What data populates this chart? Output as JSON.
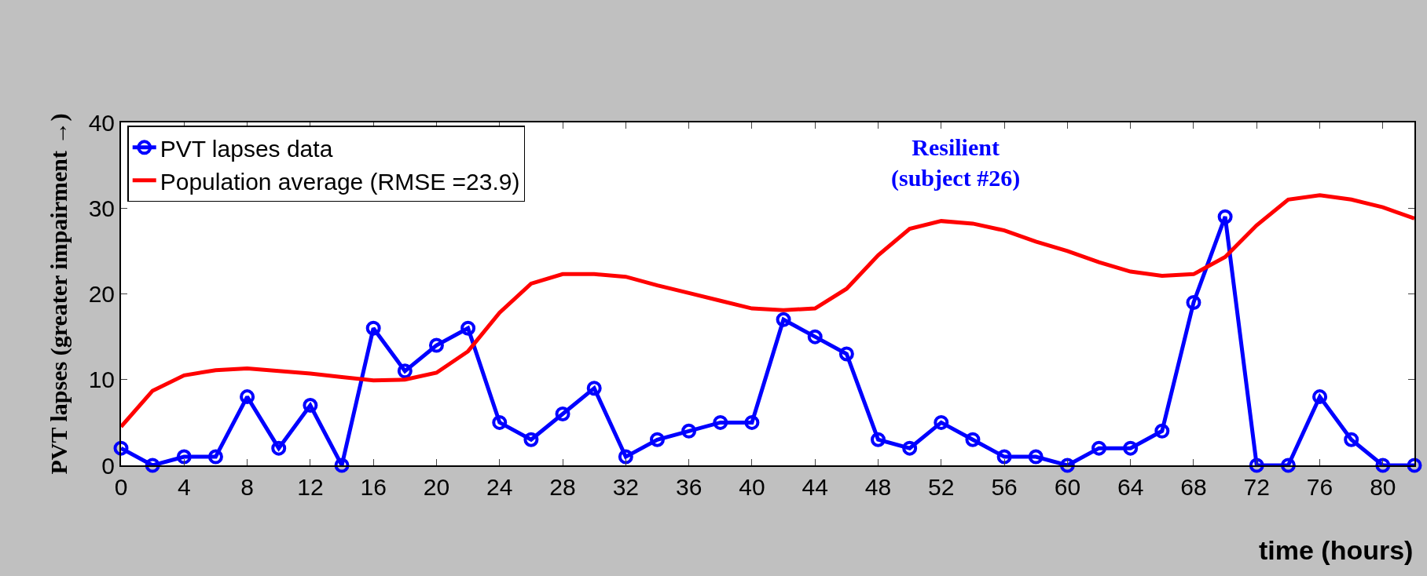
{
  "chart_data": {
    "type": "line",
    "xlabel": "time (hours)",
    "ylabel": "PVT lapses (greater impairment →)",
    "x": [
      0,
      2,
      4,
      6,
      8,
      10,
      12,
      14,
      16,
      18,
      20,
      22,
      24,
      26,
      28,
      30,
      32,
      34,
      36,
      38,
      40,
      42,
      44,
      46,
      48,
      50,
      52,
      54,
      56,
      58,
      60,
      62,
      64,
      66,
      68,
      70,
      72,
      74,
      76,
      78,
      80,
      82
    ],
    "series": [
      {
        "name": "PVT lapses data",
        "color": "#0000ff",
        "marker": "circle",
        "values": [
          2,
          0,
          1,
          1,
          8,
          2,
          7,
          0,
          16,
          11,
          14,
          16,
          5,
          3,
          6,
          9,
          1,
          3,
          4,
          5,
          5,
          17,
          15,
          13,
          3,
          2,
          5,
          3,
          1,
          1,
          0,
          2,
          2,
          4,
          19,
          29,
          0,
          0,
          8,
          3,
          0,
          0
        ]
      },
      {
        "name": "Population average (RMSE =23.9)",
        "color": "#ff0000",
        "marker": "none",
        "values": [
          4.5,
          8.7,
          10.5,
          11.1,
          11.3,
          11,
          10.7,
          10.3,
          9.9,
          10,
          10.8,
          13.3,
          17.8,
          21.2,
          22.3,
          22.3,
          22,
          21,
          20.1,
          19.2,
          18.3,
          18.1,
          18.3,
          20.6,
          24.5,
          27.6,
          28.5,
          28.2,
          27.4,
          26.1,
          25,
          23.7,
          22.6,
          22.1,
          22.3,
          24.3,
          28,
          31,
          31.5,
          31,
          30.1,
          28.8
        ]
      }
    ],
    "annotations": [
      "Resilient\n(subject #26)"
    ],
    "xlim": [
      0,
      82
    ],
    "xticks": [
      0,
      4,
      8,
      12,
      16,
      20,
      24,
      28,
      32,
      36,
      40,
      44,
      48,
      52,
      56,
      60,
      64,
      68,
      72,
      76,
      80
    ],
    "ylim": [
      0,
      40
    ],
    "yticks": [
      0,
      10,
      20,
      30,
      40
    ],
    "grid": false,
    "legend": "top left",
    "line_style": "solid"
  }
}
